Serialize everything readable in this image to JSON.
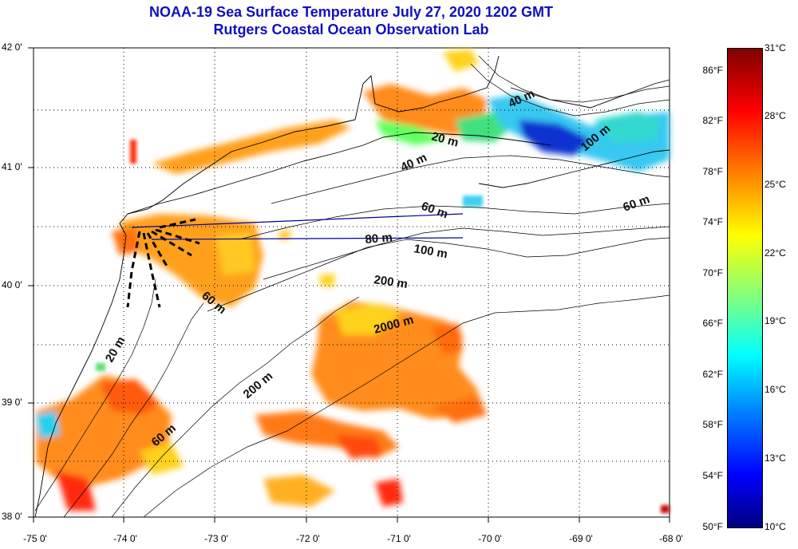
{
  "title": {
    "line1": "NOAA-19 Sea Surface Temperature July 27, 2020 1202 GMT",
    "line2": "Rutgers Coastal Ocean Observation Lab"
  },
  "axes": {
    "lat_labels": [
      "42 0'",
      "41 0'",
      "40 0'",
      "39 0'",
      "38 0'"
    ],
    "lon_labels": [
      "-75 0'",
      "-74 0'",
      "-73 0'",
      "-72 0'",
      "-71 0'",
      "-70 0'",
      "-69 0'",
      "-68 0'"
    ]
  },
  "colorbar": {
    "fahrenheit": [
      "86°F",
      "82°F",
      "78°F",
      "74°F",
      "70°F",
      "66°F",
      "62°F",
      "58°F",
      "54°F",
      "50°F"
    ],
    "celsius": [
      "31°C",
      "28°C",
      "25°C",
      "22°C",
      "19°C",
      "16°C",
      "13°C",
      "10°C"
    ],
    "colors": [
      "#00007f",
      "#0000ff",
      "#00ffff",
      "#ffff00",
      "#ff8000",
      "#ff0000",
      "#7f0000"
    ]
  },
  "depth_labels": [
    "40 m",
    "20 m",
    "100 m",
    "40 m",
    "60 m",
    "60 m",
    "80 m",
    "100 m",
    "200 m",
    "60 m",
    "2000 m",
    "20 m",
    "200 m",
    "60 m"
  ]
}
